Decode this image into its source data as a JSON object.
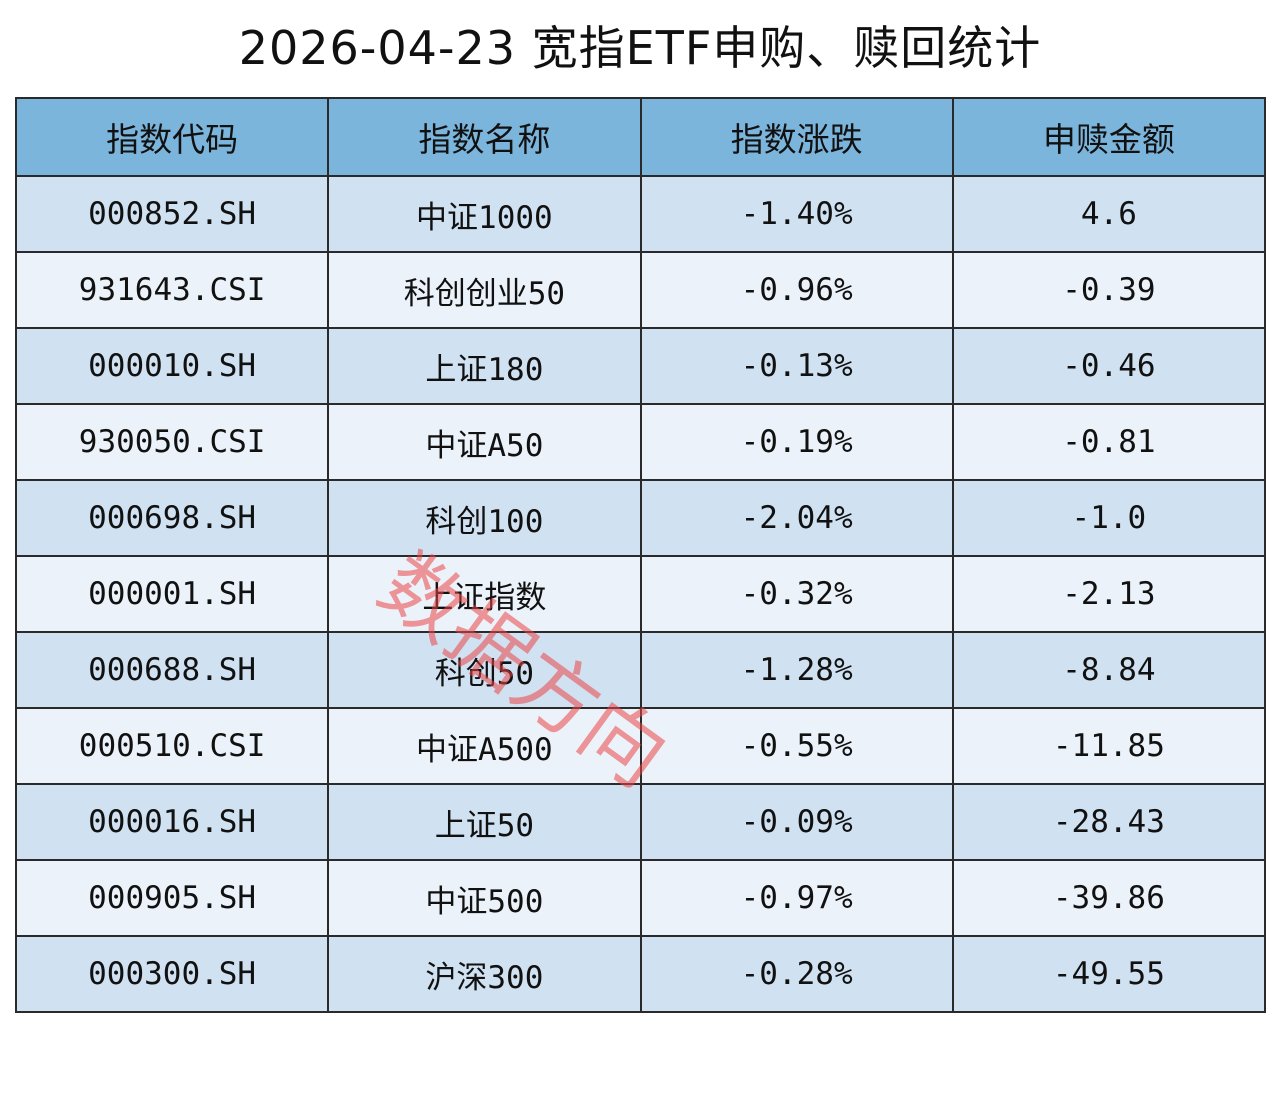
{
  "header": {
    "title": "2026-04-23 宽指ETF申购、赎回统计"
  },
  "table": {
    "columns": [
      "指数代码",
      "指数名称",
      "指数涨跌",
      "申赎金额"
    ],
    "rows": [
      [
        "000852.SH",
        "中证1000",
        "-1.40%",
        "4.6"
      ],
      [
        "931643.CSI",
        "科创创业50",
        "-0.96%",
        "-0.39"
      ],
      [
        "000010.SH",
        "上证180",
        "-0.13%",
        "-0.46"
      ],
      [
        "930050.CSI",
        "中证A50",
        "-0.19%",
        "-0.81"
      ],
      [
        "000698.SH",
        "科创100",
        "-2.04%",
        "-1.0"
      ],
      [
        "000001.SH",
        "上证指数",
        "-0.32%",
        "-2.13"
      ],
      [
        "000688.SH",
        "科创50",
        "-1.28%",
        "-8.84"
      ],
      [
        "000510.CSI",
        "中证A500",
        "-0.55%",
        "-11.85"
      ],
      [
        "000016.SH",
        "上证50",
        "-0.09%",
        "-28.43"
      ],
      [
        "000905.SH",
        "中证500",
        "-0.97%",
        "-39.86"
      ],
      [
        "000300.SH",
        "沪深300",
        "-0.28%",
        "-49.55"
      ]
    ]
  },
  "watermark": "数据方向"
}
